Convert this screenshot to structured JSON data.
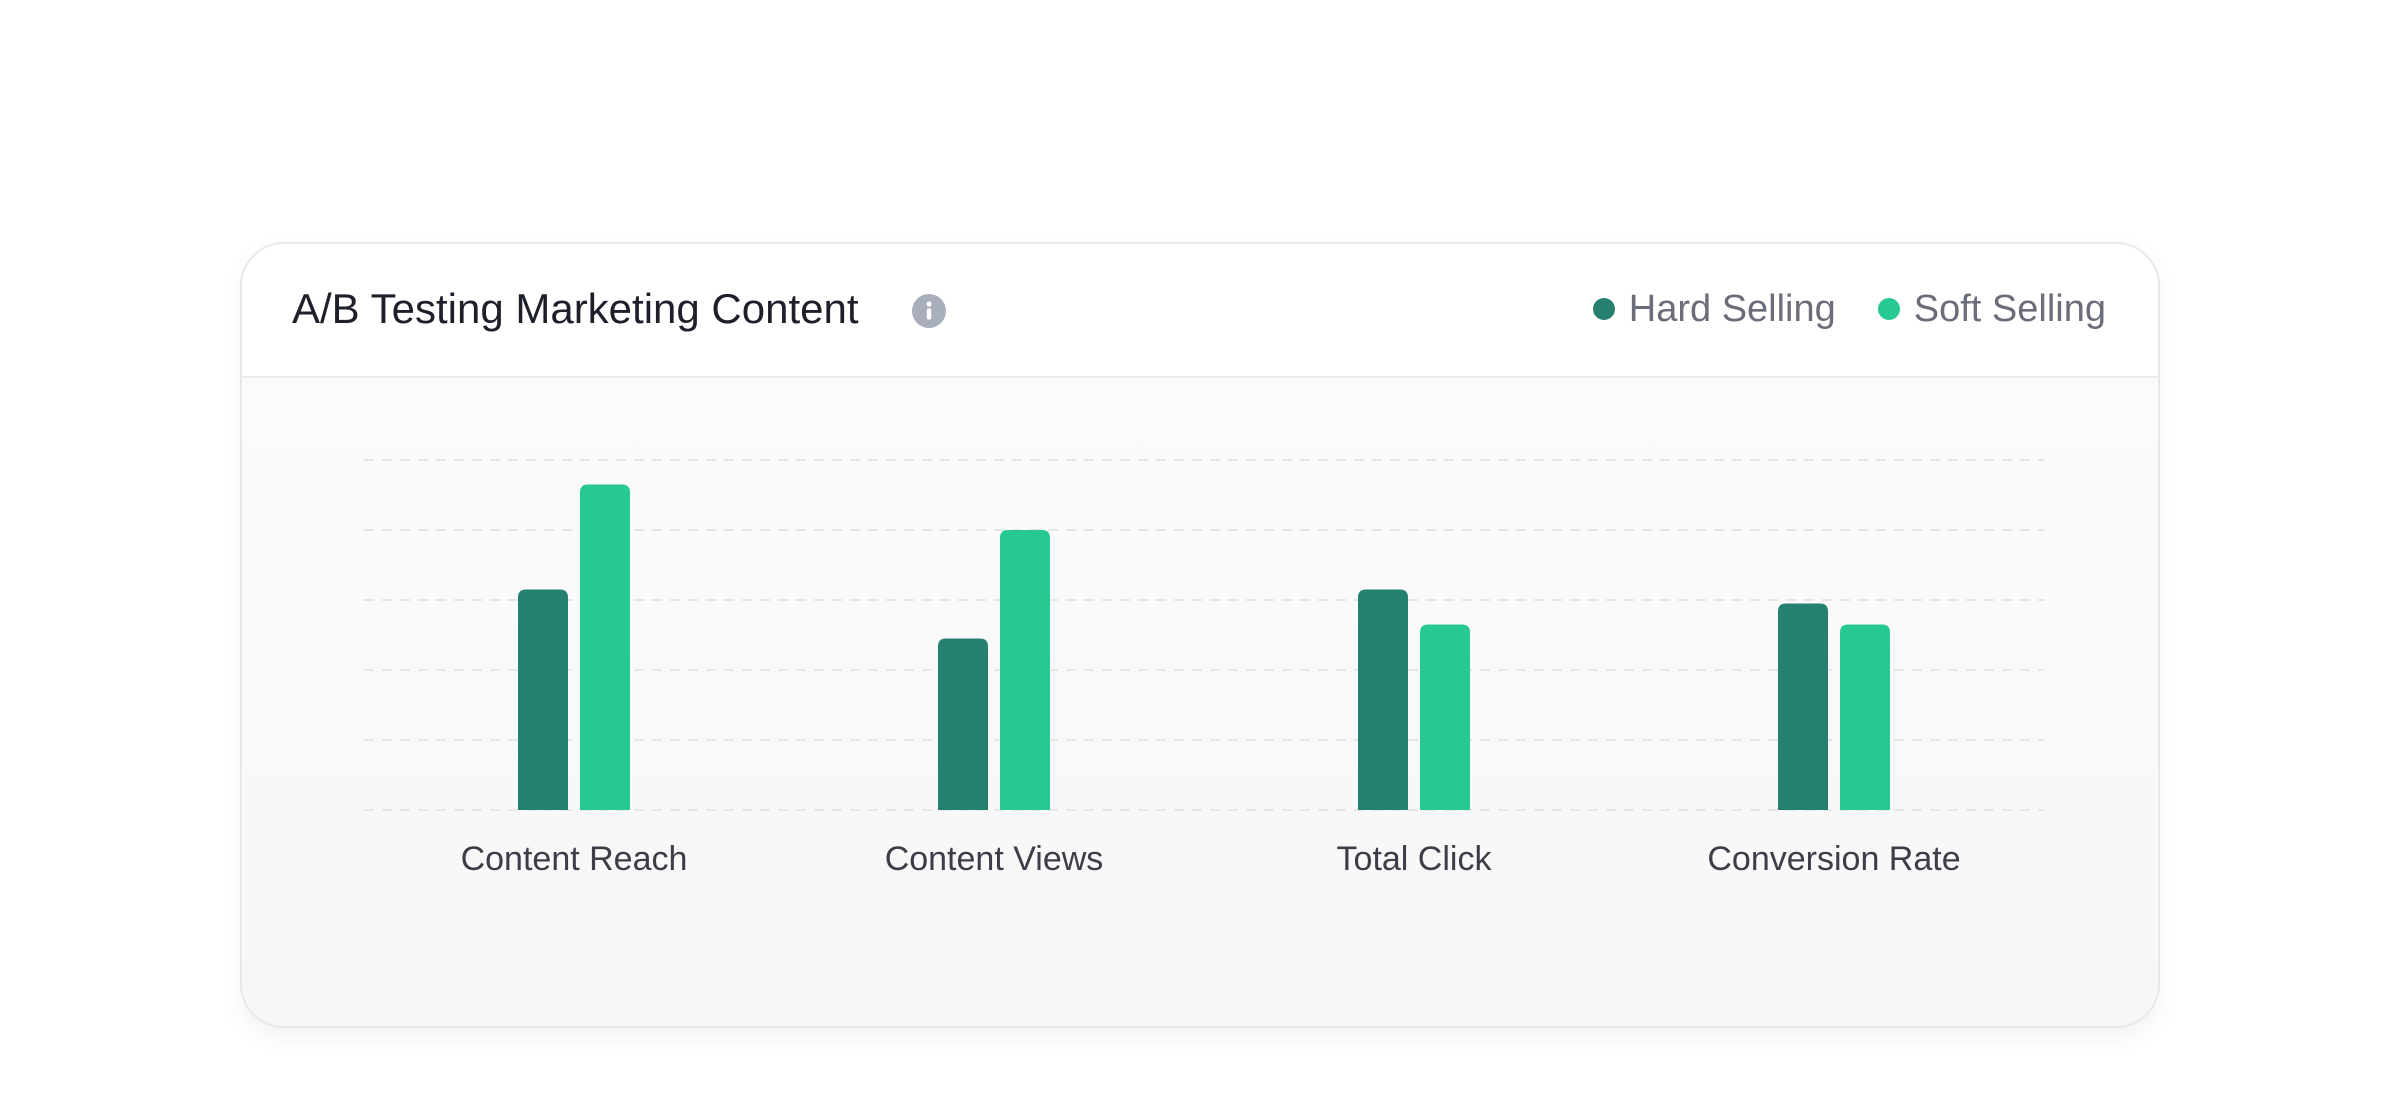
{
  "card": {
    "title": "A/B Testing Marketing Content",
    "info_icon": "info-icon"
  },
  "legend": {
    "items": [
      {
        "label": "Hard Selling",
        "color": "#268070"
      },
      {
        "label": "Soft Selling",
        "color": "#26c894"
      }
    ]
  },
  "chart_data": {
    "type": "bar",
    "categories": [
      "Content Reach",
      "Content Views",
      "Total Click",
      "Conversion Rate"
    ],
    "series": [
      {
        "name": "Hard Selling",
        "color": "#268070",
        "values": [
          63,
          49,
          63,
          59
        ]
      },
      {
        "name": "Soft Selling",
        "color": "#26c894",
        "values": [
          93,
          80,
          53,
          53
        ]
      }
    ],
    "ylim": [
      0,
      100
    ],
    "grid": true,
    "legend_position": "top-right",
    "title": "A/B Testing Marketing Content",
    "xlabel": "",
    "ylabel": ""
  }
}
